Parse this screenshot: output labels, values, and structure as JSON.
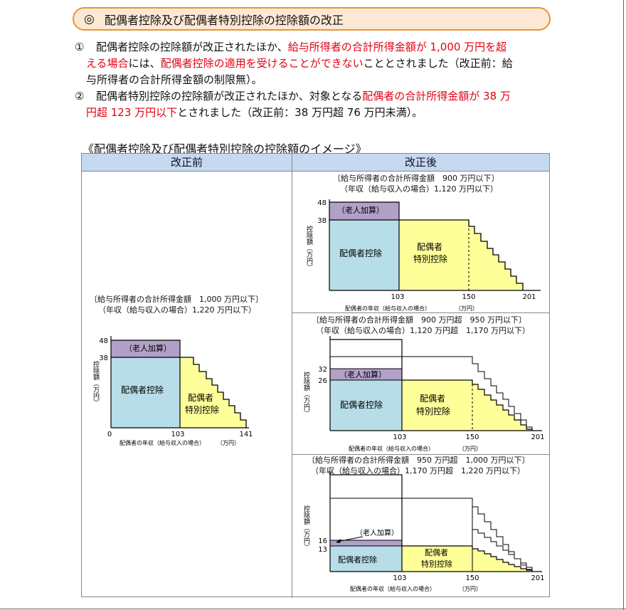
{
  "title": {
    "mark": "◎",
    "text": "配偶者控除及び配偶者特別控除の控除額の改正"
  },
  "para1": {
    "num": "①",
    "t1": "配偶者控除の控除額が改正されたほか、",
    "r1": "給与所得者の合計所得金額が 1,000 万円を超",
    "r2": "える場合",
    "t2": "には、",
    "r3": "配偶者控除の適用を受けることができない",
    "t3": "こととされました（改正前：給",
    "t4": "与所得者の合計所得金額の制限無）。"
  },
  "para2": {
    "num": "②",
    "t1": "配偶者特別控除の控除額が改正されたほか、対象となる",
    "r1": "配偶者の合計所得金額が 38 万",
    "r2": "円超 123 万円以下",
    "t2": "とされました（改正前：38 万円超 76 万円未満）。"
  },
  "image_title": "《配偶者控除及び配偶者特別控除の控除額のイメージ》",
  "col_before": "改正前",
  "col_after": "改正後",
  "common": {
    "y_label": "控除額（万円）",
    "spouse_deduction": "配偶者控除",
    "special_1": "配偶者",
    "special_2": "特別控除",
    "elder": "（老人加算）",
    "x_caption": "配偶者の年収（給与収入の場合）",
    "unit": "（万円）"
  },
  "before": {
    "cap1": "〔給与所得者の合計所得金額　1,000 万円以下〕",
    "cap2": "（年収（給与収入の場合）1,220 万円以下）",
    "y_ticks": [
      "48",
      "38"
    ],
    "x_ticks": [
      "0",
      "103",
      "141"
    ]
  },
  "after1": {
    "cap1": "〔給与所得者の合計所得金額　900 万円以下〕",
    "cap2": "（年収（給与収入の場合）1,120 万円以下）",
    "y_ticks": [
      "48",
      "38"
    ],
    "x_ticks": [
      "103",
      "150",
      "201"
    ]
  },
  "after2": {
    "cap1": "〔給与所得者の合計所得金額　900 万円超　950 万円以下〕",
    "cap2": "（年収（給与収入の場合）1,120 万円超　1,170 万円以下）",
    "y_ticks": [
      "32",
      "26"
    ],
    "x_ticks": [
      "103",
      "150",
      "201"
    ]
  },
  "after3": {
    "cap1": "〔給与所得者の合計所得金額　950 万円超　1,000 万円以下〕",
    "cap2": "（年収（給与収入の場合）1,170 万円超　1,220 万円以下）",
    "y_ticks": [
      "16",
      "13"
    ],
    "x_ticks": [
      "103",
      "150",
      "201"
    ]
  },
  "colors": {
    "blue": "#b7dde8",
    "purple": "#b1a0c7",
    "yellow": "#ffff99",
    "red": "#e60012"
  }
}
